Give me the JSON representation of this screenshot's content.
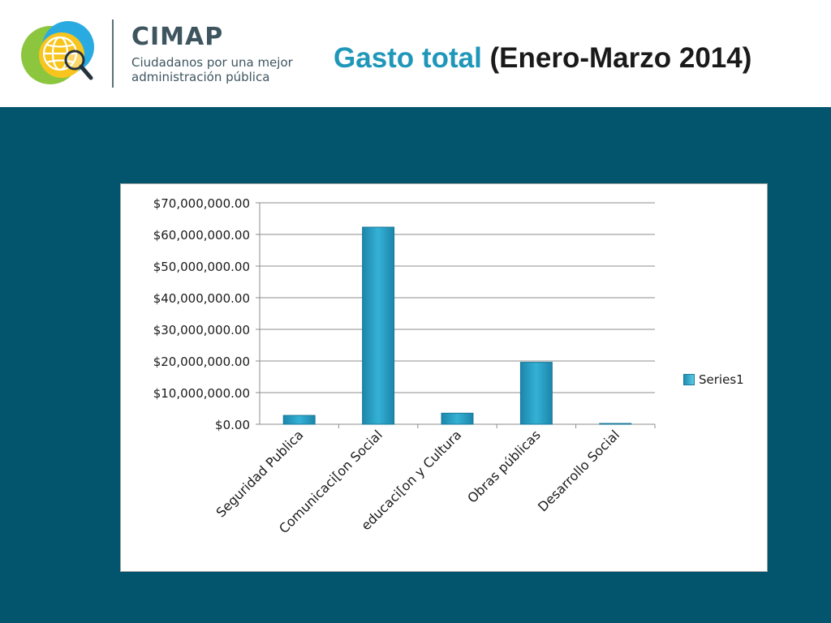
{
  "header": {
    "brand": "CIMAP",
    "tagline_line1": "Ciudadanos por una mejor",
    "tagline_line2": "administración pública",
    "title_highlight": "Gasto total",
    "title_rest": " (Enero-Marzo 2014)"
  },
  "colors": {
    "title_accent": "#1f97b9",
    "panel_background": "#02556d",
    "bar": "#35b1d6"
  },
  "chart_data": {
    "type": "bar",
    "categories": [
      "Seguridad Publica",
      "Comunicaci[on Social",
      "educaci[on y Cultura",
      "Obras públicas",
      "Desarrollo Social"
    ],
    "series": [
      {
        "name": "Series1",
        "values": [
          2800000,
          62300000,
          3500000,
          19600000,
          0
        ]
      }
    ],
    "ylim": [
      0,
      70000000
    ],
    "yticks": [
      "$0.00",
      "$10,000,000.00",
      "$20,000,000.00",
      "$30,000,000.00",
      "$40,000,000.00",
      "$50,000,000.00",
      "$60,000,000.00",
      "$70,000,000.00"
    ],
    "grid": true,
    "legend": "right"
  }
}
